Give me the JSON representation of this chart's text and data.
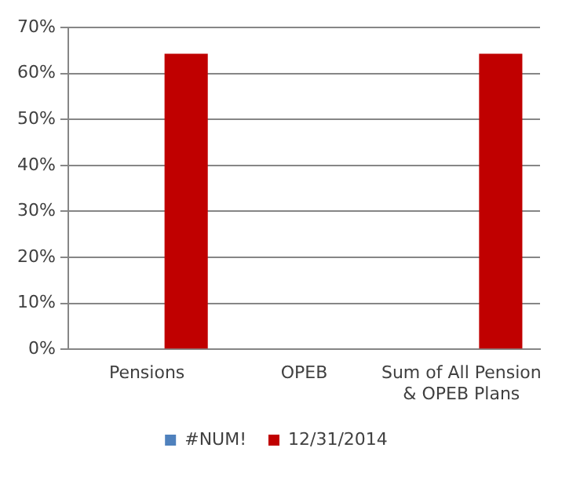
{
  "chart_data": {
    "type": "bar",
    "categories": [
      "Pensions",
      "OPEB",
      "Sum of All Pension & OPEB Plans"
    ],
    "series": [
      {
        "name": "#NUM!",
        "color": "#4f81bd",
        "values": [
          null,
          null,
          null
        ]
      },
      {
        "name": "12/31/2014",
        "color": "#c00000",
        "values": [
          64.3,
          null,
          64.3
        ]
      }
    ],
    "ylim": [
      0,
      70
    ],
    "yticks": [
      {
        "value": 0,
        "label": "0%"
      },
      {
        "value": 10,
        "label": "10%"
      },
      {
        "value": 20,
        "label": "20%"
      },
      {
        "value": 30,
        "label": "30%"
      },
      {
        "value": 40,
        "label": "40%"
      },
      {
        "value": 50,
        "label": "50%"
      },
      {
        "value": 60,
        "label": "60%"
      },
      {
        "value": 70,
        "label": "70%"
      }
    ],
    "grid": "y",
    "legend": "bottom"
  }
}
